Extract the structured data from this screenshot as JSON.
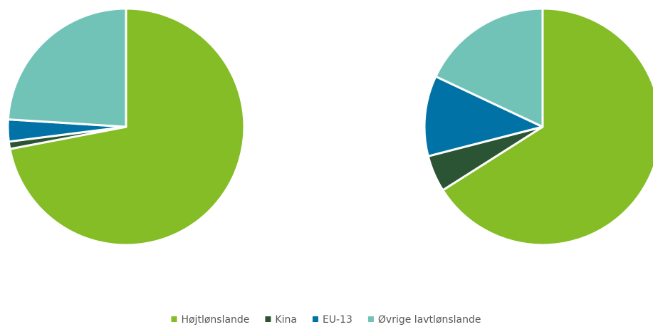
{
  "chart_data": [
    {
      "type": "pie",
      "values": [
        72,
        1,
        3,
        24
      ]
    },
    {
      "type": "pie",
      "values": [
        66,
        5,
        11,
        18
      ]
    }
  ],
  "legend": {
    "categories": [
      "Højtlønslande",
      "Kina",
      "EU-13",
      "Øvrige lavtlønslande"
    ],
    "colors": [
      "#84bd26",
      "#2b5434",
      "#0072a6",
      "#72c3b7"
    ]
  }
}
